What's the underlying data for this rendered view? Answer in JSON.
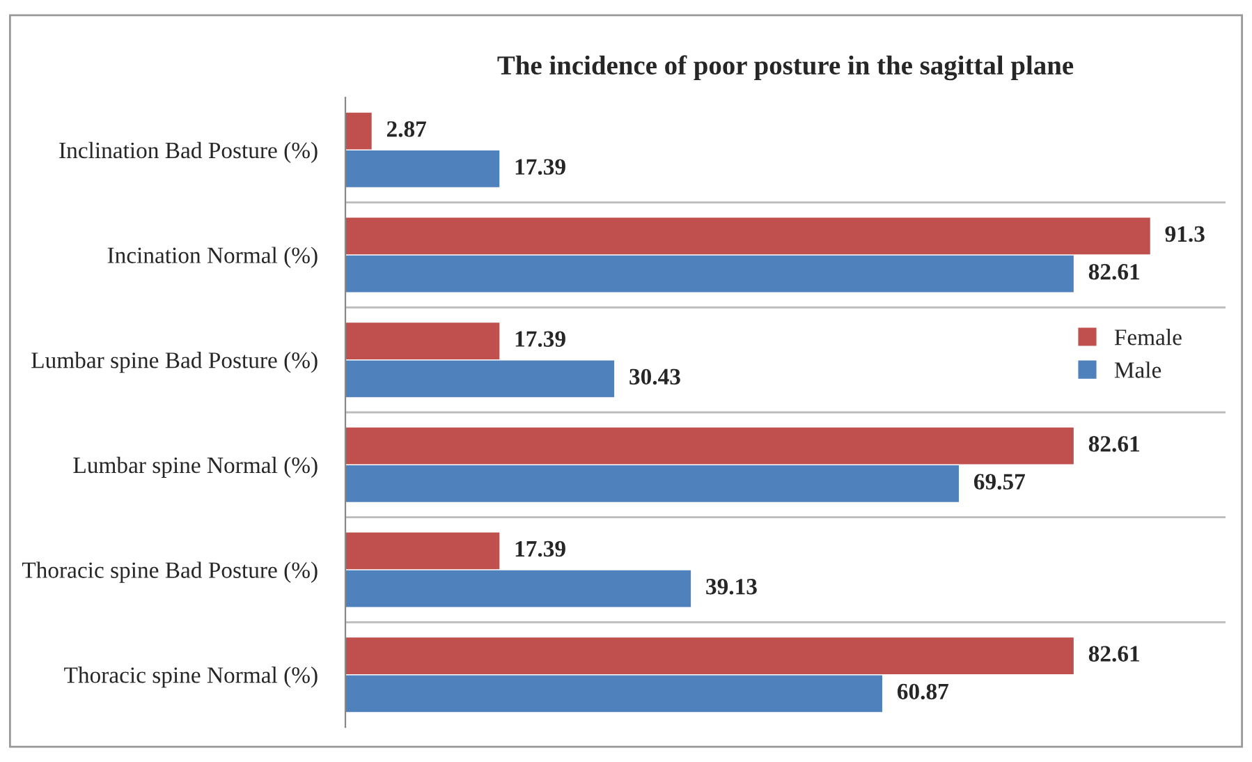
{
  "chart_data": {
    "type": "bar",
    "orientation": "horizontal",
    "title": "The incidence of poor posture in the sagittal plane",
    "categories": [
      "Inclination Bad Posture (%)",
      "Incination Normal (%)",
      "Lumbar spine Bad Posture (%)",
      "Lumbar spine Normal (%)",
      "Thoracic spine Bad Posture (%)",
      "Thoracic spine Normal (%)"
    ],
    "series": [
      {
        "name": "Female",
        "color": "#c0504d",
        "values": [
          2.87,
          91.3,
          17.39,
          82.61,
          17.39,
          82.61
        ]
      },
      {
        "name": "Male",
        "color": "#4f81bd",
        "values": [
          17.39,
          82.61,
          30.43,
          69.57,
          39.13,
          60.87
        ]
      }
    ],
    "data_labels": true,
    "grid": "y",
    "legend": "right"
  }
}
